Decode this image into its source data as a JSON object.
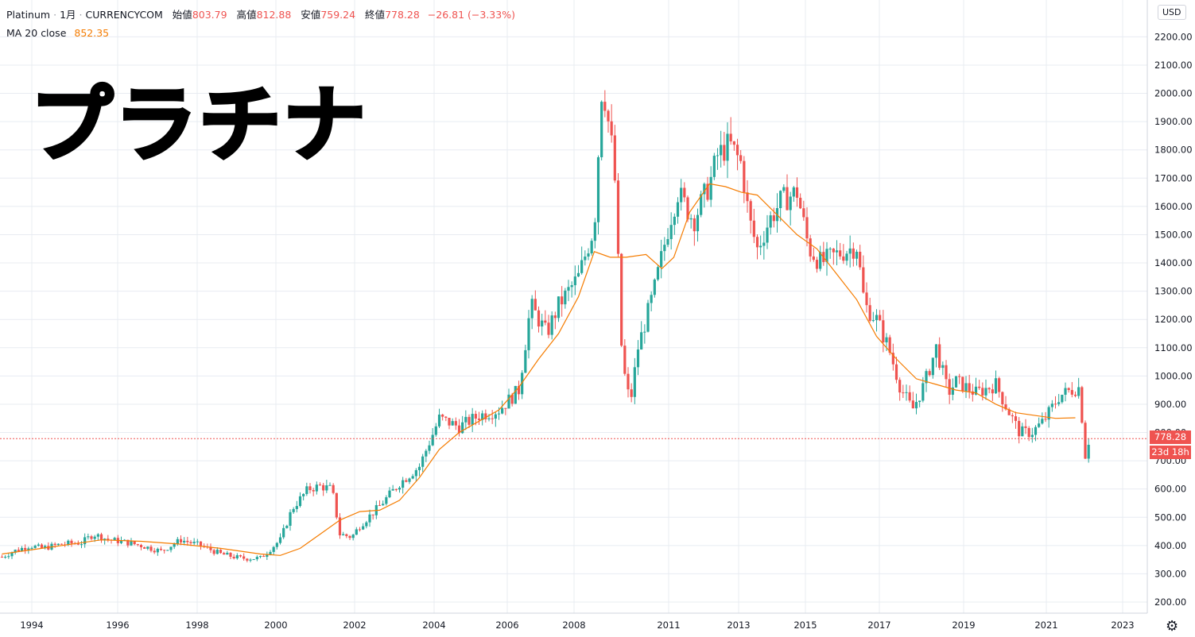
{
  "header": {
    "symbol": "Platinum",
    "interval": "1月",
    "exchange": "CURRENCYCOM",
    "open_label": "始値",
    "open": "803.79",
    "high_label": "高値",
    "high": "812.88",
    "low_label": "安値",
    "low": "759.24",
    "close_label": "終値",
    "close": "778.28",
    "change": "−26.81 (−3.33%)"
  },
  "ma": {
    "label": "MA 20 close",
    "value": "852.35"
  },
  "overlay_title": "プラチナ",
  "price_axis": {
    "currency": "USD",
    "last_price": "778.28",
    "countdown": "23d 18h"
  },
  "icons": {
    "settings": "gear-icon"
  },
  "colors": {
    "up": "#26a69a",
    "down": "#ef5350",
    "ma": "#f57c00",
    "grid": "#e8ecf2"
  },
  "chart_data": {
    "type": "candlestick",
    "title": "Platinum",
    "ylabel": "USD",
    "ylim": [
      150,
      2250
    ],
    "y_ticks": [
      200,
      300,
      400,
      500,
      600,
      700,
      800,
      900,
      1000,
      1100,
      1200,
      1300,
      1400,
      1500,
      1600,
      1700,
      1800,
      1900,
      2000,
      2100,
      2200
    ],
    "x_ticks": [
      "1994",
      "1996",
      "1998",
      "2000",
      "2002",
      "2004",
      "2006",
      "2008",
      "2011",
      "2013",
      "2015",
      "2017",
      "2019",
      "2021",
      "2023"
    ],
    "last_close": 778.28,
    "series": [
      {
        "name": "Platinum",
        "points": [
          [
            1993.0,
            360
          ],
          [
            1993.3,
            380
          ],
          [
            1993.7,
            400
          ],
          [
            1994.0,
            390
          ],
          [
            1994.5,
            405
          ],
          [
            1995.0,
            410
          ],
          [
            1995.3,
            440
          ],
          [
            1995.7,
            420
          ],
          [
            1996.0,
            415
          ],
          [
            1996.5,
            400
          ],
          [
            1997.0,
            380
          ],
          [
            1997.5,
            420
          ],
          [
            1998.0,
            400
          ],
          [
            1998.5,
            370
          ],
          [
            1999.0,
            355
          ],
          [
            1999.5,
            355
          ],
          [
            2000.0,
            420
          ],
          [
            2000.3,
            530
          ],
          [
            2000.7,
            600
          ],
          [
            2001.0,
            610
          ],
          [
            2001.3,
            600
          ],
          [
            2001.5,
            440
          ],
          [
            2001.8,
            430
          ],
          [
            2002.0,
            470
          ],
          [
            2002.5,
            540
          ],
          [
            2003.0,
            620
          ],
          [
            2003.5,
            680
          ],
          [
            2004.0,
            850
          ],
          [
            2004.5,
            820
          ],
          [
            2005.0,
            860
          ],
          [
            2005.5,
            880
          ],
          [
            2006.0,
            950
          ],
          [
            2006.3,
            1250
          ],
          [
            2006.7,
            1150
          ],
          [
            2007.0,
            1250
          ],
          [
            2007.5,
            1350
          ],
          [
            2007.9,
            1530
          ],
          [
            2008.1,
            2050
          ],
          [
            2008.4,
            1750
          ],
          [
            2008.6,
            1050
          ],
          [
            2008.8,
            900
          ],
          [
            2009.0,
            1100
          ],
          [
            2009.4,
            1300
          ],
          [
            2009.8,
            1550
          ],
          [
            2010.0,
            1650
          ],
          [
            2010.4,
            1550
          ],
          [
            2010.8,
            1680
          ],
          [
            2011.0,
            1780
          ],
          [
            2011.3,
            1820
          ],
          [
            2011.6,
            1750
          ],
          [
            2011.8,
            1550
          ],
          [
            2012.0,
            1450
          ],
          [
            2012.3,
            1550
          ],
          [
            2012.6,
            1620
          ],
          [
            2013.0,
            1650
          ],
          [
            2013.3,
            1450
          ],
          [
            2013.6,
            1400
          ],
          [
            2014.0,
            1430
          ],
          [
            2014.5,
            1460
          ],
          [
            2014.7,
            1250
          ],
          [
            2015.0,
            1200
          ],
          [
            2015.3,
            1100
          ],
          [
            2015.6,
            960
          ],
          [
            2015.9,
            880
          ],
          [
            2016.2,
            970
          ],
          [
            2016.5,
            1100
          ],
          [
            2016.8,
            940
          ],
          [
            2017.0,
            980
          ],
          [
            2017.5,
            940
          ],
          [
            2018.0,
            970
          ],
          [
            2018.3,
            880
          ],
          [
            2018.6,
            800
          ],
          [
            2018.9,
            800
          ],
          [
            2019.2,
            840
          ],
          [
            2019.6,
            930
          ],
          [
            2019.9,
            950
          ],
          [
            2020.1,
            960
          ],
          [
            2020.25,
            720
          ],
          [
            2020.35,
            780
          ]
        ]
      },
      {
        "name": "MA 20 close",
        "points": [
          [
            1993.0,
            370
          ],
          [
            1994.0,
            390
          ],
          [
            1995.0,
            410
          ],
          [
            1995.5,
            420
          ],
          [
            1996.5,
            415
          ],
          [
            1997.5,
            405
          ],
          [
            1998.5,
            390
          ],
          [
            1999.5,
            370
          ],
          [
            2000.0,
            365
          ],
          [
            2000.5,
            390
          ],
          [
            2001.0,
            440
          ],
          [
            2001.5,
            490
          ],
          [
            2002.0,
            520
          ],
          [
            2002.5,
            525
          ],
          [
            2003.0,
            560
          ],
          [
            2003.5,
            640
          ],
          [
            2004.0,
            740
          ],
          [
            2004.5,
            800
          ],
          [
            2005.0,
            840
          ],
          [
            2005.5,
            880
          ],
          [
            2006.0,
            960
          ],
          [
            2006.5,
            1060
          ],
          [
            2007.0,
            1150
          ],
          [
            2007.5,
            1280
          ],
          [
            2007.9,
            1440
          ],
          [
            2008.3,
            1420
          ],
          [
            2008.7,
            1420
          ],
          [
            2009.2,
            1430
          ],
          [
            2009.6,
            1380
          ],
          [
            2009.9,
            1420
          ],
          [
            2010.3,
            1580
          ],
          [
            2010.8,
            1680
          ],
          [
            2011.2,
            1670
          ],
          [
            2011.6,
            1650
          ],
          [
            2012.0,
            1640
          ],
          [
            2012.5,
            1570
          ],
          [
            2013.0,
            1500
          ],
          [
            2013.5,
            1450
          ],
          [
            2014.0,
            1360
          ],
          [
            2014.5,
            1270
          ],
          [
            2015.0,
            1140
          ],
          [
            2015.5,
            1060
          ],
          [
            2016.0,
            990
          ],
          [
            2016.5,
            970
          ],
          [
            2017.0,
            950
          ],
          [
            2017.5,
            940
          ],
          [
            2018.0,
            900
          ],
          [
            2018.5,
            870
          ],
          [
            2019.0,
            860
          ],
          [
            2019.5,
            850
          ],
          [
            2020.0,
            852
          ]
        ]
      }
    ]
  }
}
